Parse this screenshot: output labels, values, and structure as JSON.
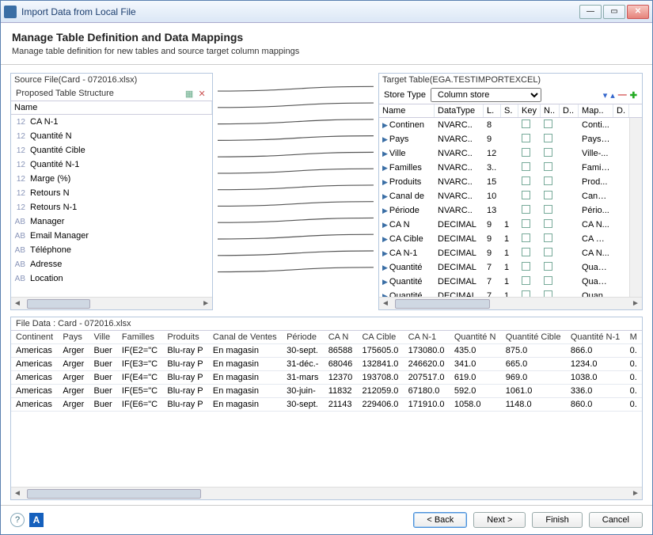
{
  "window": {
    "title": "Import Data from Local File"
  },
  "header": {
    "title": "Manage Table Definition and Data Mappings",
    "subtitle": "Manage table definition for new tables and source target column mappings"
  },
  "source": {
    "file_label": "Source File(Card - 072016.xlsx)",
    "structure_label": "Proposed Table Structure",
    "name_col": "Name",
    "rows": [
      {
        "type": "12",
        "name": "CA N-1"
      },
      {
        "type": "12",
        "name": "Quantité N"
      },
      {
        "type": "12",
        "name": "Quantité Cible"
      },
      {
        "type": "12",
        "name": "Quantité N-1"
      },
      {
        "type": "12",
        "name": "Marge  (%)"
      },
      {
        "type": "12",
        "name": "Retours N"
      },
      {
        "type": "12",
        "name": "Retours N-1"
      },
      {
        "type": "AB",
        "name": "Manager"
      },
      {
        "type": "AB",
        "name": "Email Manager"
      },
      {
        "type": "AB",
        "name": "Téléphone"
      },
      {
        "type": "AB",
        "name": "Adresse"
      },
      {
        "type": "AB",
        "name": "Location"
      }
    ]
  },
  "target": {
    "table_label": "Target Table(EGA.TESTIMPORTEXCEL)",
    "store_type_label": "Store Type",
    "store_type_value": "Column store",
    "cols": [
      "Name",
      "DataType",
      "L.",
      "S.",
      "Key",
      "N..",
      "D..",
      "Map..",
      "D."
    ],
    "rows": [
      {
        "name": "Continen",
        "dtype": "NVARC..",
        "l": "8",
        "s": "",
        "map": "Conti..."
      },
      {
        "name": "Pays",
        "dtype": "NVARC..",
        "l": "9",
        "s": "",
        "map": "Pays-..."
      },
      {
        "name": "Ville",
        "dtype": "NVARC..",
        "l": "12",
        "s": "",
        "map": "Ville-..."
      },
      {
        "name": "Familles",
        "dtype": "NVARC..",
        "l": "3..",
        "s": "",
        "map": "Famil..."
      },
      {
        "name": "Produits",
        "dtype": "NVARC..",
        "l": "15",
        "s": "",
        "map": "Prod..."
      },
      {
        "name": "Canal de",
        "dtype": "NVARC..",
        "l": "10",
        "s": "",
        "map": "Canal..."
      },
      {
        "name": "Période",
        "dtype": "NVARC..",
        "l": "13",
        "s": "",
        "map": "Pério..."
      },
      {
        "name": "CA N",
        "dtype": "DECIMAL",
        "l": "9",
        "s": "1",
        "map": "CA N..."
      },
      {
        "name": "CA Cible",
        "dtype": "DECIMAL",
        "l": "9",
        "s": "1",
        "map": "CA Ci..."
      },
      {
        "name": "CA N-1",
        "dtype": "DECIMAL",
        "l": "9",
        "s": "1",
        "map": "CA N..."
      },
      {
        "name": "Quantité",
        "dtype": "DECIMAL",
        "l": "7",
        "s": "1",
        "map": "Quan..."
      },
      {
        "name": "Quantité",
        "dtype": "DECIMAL",
        "l": "7",
        "s": "1",
        "map": "Quan..."
      },
      {
        "name": "Quantité",
        "dtype": "DECIMAL",
        "l": "7",
        "s": "1",
        "map": "Quan"
      }
    ]
  },
  "filedata": {
    "label": "File Data : Card - 072016.xlsx",
    "cols": [
      "Continent",
      "Pays",
      "Ville",
      "Familles",
      "Produits",
      "Canal de Ventes",
      "Période",
      "CA N",
      "CA Cible",
      "CA N-1",
      "Quantité N",
      "Quantité Cible",
      "Quantité N-1",
      "M"
    ],
    "rows": [
      [
        "Americas",
        "Arger",
        "Buer",
        "IF(E2=\"C",
        "Blu-ray P",
        "En magasin",
        "30-sept.",
        "86588",
        "175605.0",
        "173080.0",
        "435.0",
        "875.0",
        "866.0",
        "0."
      ],
      [
        "Americas",
        "Arger",
        "Buer",
        "IF(E3=\"C",
        "Blu-ray P",
        "En magasin",
        "31-déc.-",
        "68046",
        "132841.0",
        "246620.0",
        "341.0",
        "665.0",
        "1234.0",
        "0."
      ],
      [
        "Americas",
        "Arger",
        "Buer",
        "IF(E4=\"C",
        "Blu-ray P",
        "En magasin",
        "31-mars",
        "12370",
        "193708.0",
        "207517.0",
        "619.0",
        "969.0",
        "1038.0",
        "0."
      ],
      [
        "Americas",
        "Arger",
        "Buer",
        "IF(E5=\"C",
        "Blu-ray P",
        "En magasin",
        "30-juin-",
        "11832",
        "212059.0",
        "67180.0",
        "592.0",
        "1061.0",
        "336.0",
        "0."
      ],
      [
        "Americas",
        "Arger",
        "Buer",
        "IF(E6=\"C",
        "Blu-ray P",
        "En magasin",
        "30-sept.",
        "21143",
        "229406.0",
        "171910.0",
        "1058.0",
        "1148.0",
        "860.0",
        "0."
      ]
    ]
  },
  "footer": {
    "back": "< Back",
    "next": "Next >",
    "finish": "Finish",
    "cancel": "Cancel"
  },
  "colors": {
    "border": "#b5c7de",
    "accent": "#3a6ea5",
    "line": "#555"
  }
}
